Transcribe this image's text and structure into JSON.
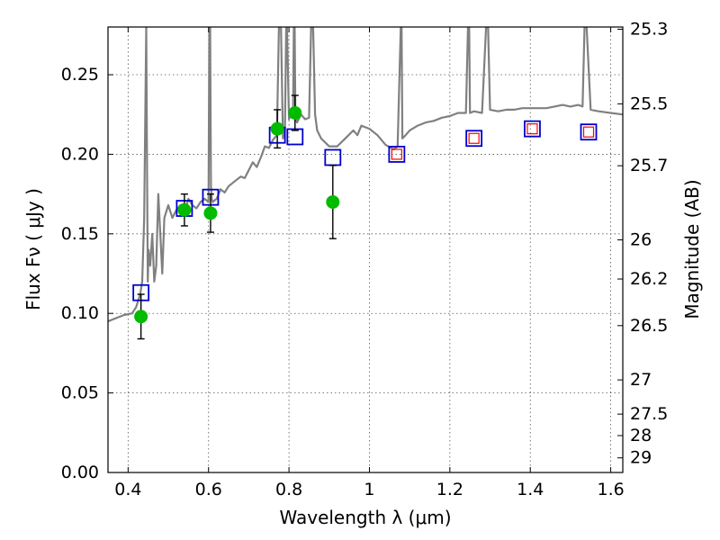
{
  "chart_data": {
    "type": "scatter",
    "title": "",
    "xlabel": "Wavelength  λ (μm)",
    "ylabel": "Flux  Fν  ( μJy )",
    "y2label": "Magnitude (AB)",
    "xlim": [
      0.35,
      1.63
    ],
    "ylim": [
      0.0,
      0.28
    ],
    "grid": true,
    "x_ticks": [
      0.4,
      0.6,
      0.8,
      1.0,
      1.2,
      1.4,
      1.6
    ],
    "x_tick_labels": [
      "0.4",
      "0.6",
      "0.8",
      "1",
      "1.2",
      "1.4",
      "1.6"
    ],
    "y_ticks": [
      0.0,
      0.05,
      0.1,
      0.15,
      0.2,
      0.25
    ],
    "y_tick_labels": [
      "0.00",
      "0.05",
      "0.10",
      "0.15",
      "0.20",
      "0.25"
    ],
    "y2_ticks": [
      {
        "label": "25.3",
        "flux": 0.2786
      },
      {
        "label": "25.5",
        "flux": 0.2317
      },
      {
        "label": "25.7",
        "flux": 0.1928
      },
      {
        "label": "26",
        "flux": 0.1462
      },
      {
        "label": "26.2",
        "flux": 0.1216
      },
      {
        "label": "26.5",
        "flux": 0.0923
      },
      {
        "label": "27",
        "flux": 0.0582
      },
      {
        "label": "27.5",
        "flux": 0.0367
      },
      {
        "label": "28",
        "flux": 0.0232
      },
      {
        "label": "29",
        "flux": 0.0092
      }
    ],
    "colors": {
      "spectrum": "#808080",
      "observed": "#00bb00",
      "model_box": "#0000cc",
      "model_inner": "#ff0000",
      "errorbar": "#000000",
      "grid": "#555555"
    },
    "series": [
      {
        "name": "model spectrum",
        "kind": "line",
        "x": [
          0.35,
          0.37,
          0.39,
          0.41,
          0.42,
          0.43,
          0.435,
          0.44,
          0.445,
          0.447,
          0.449,
          0.451,
          0.455,
          0.46,
          0.465,
          0.47,
          0.475,
          0.48,
          0.485,
          0.49,
          0.5,
          0.51,
          0.52,
          0.53,
          0.54,
          0.55,
          0.56,
          0.57,
          0.58,
          0.59,
          0.6,
          0.602,
          0.604,
          0.606,
          0.608,
          0.61,
          0.62,
          0.63,
          0.64,
          0.65,
          0.66,
          0.67,
          0.68,
          0.69,
          0.7,
          0.71,
          0.72,
          0.73,
          0.74,
          0.75,
          0.76,
          0.77,
          0.775,
          0.78,
          0.785,
          0.79,
          0.793,
          0.795,
          0.8,
          0.805,
          0.81,
          0.812,
          0.814,
          0.816,
          0.82,
          0.83,
          0.84,
          0.85,
          0.855,
          0.86,
          0.865,
          0.87,
          0.88,
          0.9,
          0.92,
          0.94,
          0.96,
          0.97,
          0.98,
          1.0,
          1.02,
          1.04,
          1.06,
          1.07,
          1.078,
          1.08,
          1.082,
          1.09,
          1.1,
          1.12,
          1.14,
          1.16,
          1.18,
          1.2,
          1.22,
          1.24,
          1.245,
          1.248,
          1.25,
          1.26,
          1.28,
          1.29,
          1.295,
          1.3,
          1.32,
          1.34,
          1.36,
          1.38,
          1.4,
          1.42,
          1.44,
          1.46,
          1.48,
          1.5,
          1.52,
          1.53,
          1.535,
          1.54,
          1.55,
          1.57,
          1.6,
          1.63
        ],
        "y": [
          0.095,
          0.097,
          0.099,
          0.1,
          0.104,
          0.112,
          0.12,
          0.16,
          0.28,
          0.2,
          0.12,
          0.14,
          0.13,
          0.15,
          0.12,
          0.13,
          0.175,
          0.15,
          0.125,
          0.16,
          0.168,
          0.16,
          0.165,
          0.168,
          0.163,
          0.172,
          0.168,
          0.166,
          0.17,
          0.172,
          0.17,
          0.28,
          0.28,
          0.18,
          0.172,
          0.17,
          0.172,
          0.178,
          0.176,
          0.18,
          0.182,
          0.184,
          0.186,
          0.185,
          0.19,
          0.195,
          0.192,
          0.198,
          0.205,
          0.204,
          0.209,
          0.212,
          0.28,
          0.28,
          0.21,
          0.215,
          0.28,
          0.28,
          0.222,
          0.225,
          0.225,
          0.28,
          0.28,
          0.225,
          0.22,
          0.225,
          0.222,
          0.223,
          0.28,
          0.28,
          0.225,
          0.215,
          0.21,
          0.205,
          0.205,
          0.21,
          0.215,
          0.212,
          0.218,
          0.216,
          0.212,
          0.206,
          0.203,
          0.205,
          0.28,
          0.28,
          0.21,
          0.212,
          0.215,
          0.218,
          0.22,
          0.221,
          0.223,
          0.224,
          0.226,
          0.226,
          0.28,
          0.28,
          0.226,
          0.227,
          0.226,
          0.28,
          0.28,
          0.228,
          0.227,
          0.228,
          0.228,
          0.229,
          0.229,
          0.229,
          0.229,
          0.23,
          0.231,
          0.23,
          0.231,
          0.23,
          0.28,
          0.28,
          0.228,
          0.227,
          0.226,
          0.225
        ]
      },
      {
        "name": "model photometry",
        "kind": "square",
        "x": [
          0.432,
          0.54,
          0.605,
          0.771,
          0.815,
          0.909,
          1.068,
          1.26,
          1.405,
          1.545
        ],
        "y": [
          0.113,
          0.166,
          0.173,
          0.212,
          0.211,
          0.198,
          0.2,
          0.21,
          0.216,
          0.214
        ],
        "inner": [
          false,
          false,
          false,
          false,
          false,
          false,
          true,
          true,
          true,
          true
        ]
      },
      {
        "name": "observed photometry",
        "kind": "circle",
        "x": [
          0.432,
          0.54,
          0.605,
          0.771,
          0.815,
          0.909
        ],
        "y": [
          0.098,
          0.165,
          0.163,
          0.216,
          0.226,
          0.17
        ],
        "err": [
          0.014,
          0.01,
          0.012,
          0.012,
          0.011,
          0.023
        ]
      }
    ]
  }
}
